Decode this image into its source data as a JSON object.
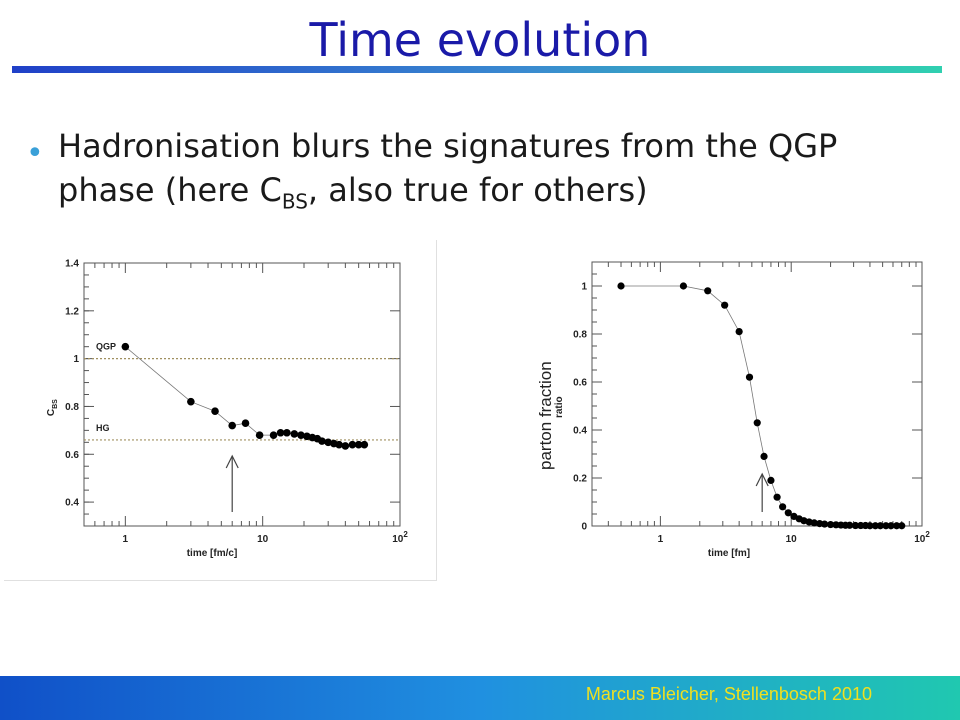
{
  "slide": {
    "title": "Time evolution",
    "bullet": {
      "text_before": "Hadronisation blurs the signatures from the QGP phase (here C",
      "subscript": "BS",
      "text_after": ", also true for others)"
    },
    "overlay_label": "parton fraction",
    "footer": "Marcus Bleicher, Stellenbosch 2010"
  },
  "colors": {
    "title": "#1a1aa8",
    "bullet_dot": "#3aa0d8",
    "footer_text": "#f0e020",
    "marker": "#000000"
  },
  "chart_data": [
    {
      "type": "line",
      "xscale": "log",
      "xlabel": "time [fm/c]",
      "ylabel": "C_BS",
      "ylabel_main": "C",
      "ylabel_sub": "BS",
      "xlim": [
        0.5,
        100
      ],
      "ylim": [
        0.3,
        1.4
      ],
      "xticks": [
        {
          "value": 1,
          "label": "1"
        },
        {
          "value": 10,
          "label": "10"
        },
        {
          "value": 100,
          "label": "10",
          "sup": "2"
        }
      ],
      "yticks": [
        {
          "value": 0.4,
          "label": "0.4"
        },
        {
          "value": 0.6,
          "label": "0.6"
        },
        {
          "value": 0.8,
          "label": "0.8"
        },
        {
          "value": 1.0,
          "label": "1"
        },
        {
          "value": 1.2,
          "label": "1.2"
        },
        {
          "value": 1.4,
          "label": "1.4"
        }
      ],
      "reference_lines": [
        {
          "label": "QGP",
          "y": 1.0
        },
        {
          "label": "HG",
          "y": 0.66
        }
      ],
      "arrow_at_x": 6,
      "x": [
        1,
        3,
        4.5,
        6,
        7.5,
        9.5,
        12,
        13.5,
        15,
        17,
        19,
        21,
        23,
        25,
        27,
        30,
        33,
        36,
        40,
        45,
        50,
        55
      ],
      "y": [
        1.05,
        0.82,
        0.78,
        0.72,
        0.73,
        0.68,
        0.68,
        0.69,
        0.69,
        0.685,
        0.68,
        0.675,
        0.67,
        0.665,
        0.655,
        0.65,
        0.645,
        0.64,
        0.635,
        0.64,
        0.64,
        0.64
      ]
    },
    {
      "type": "line",
      "xscale": "log",
      "xlabel": "time [fm]",
      "ylabel": "ratio",
      "xlim": [
        0.3,
        100
      ],
      "ylim": [
        0,
        1.1
      ],
      "xticks": [
        {
          "value": 1,
          "label": "1"
        },
        {
          "value": 10,
          "label": "10"
        },
        {
          "value": 100,
          "label": "10",
          "sup": "2"
        }
      ],
      "yticks": [
        {
          "value": 0,
          "label": "0"
        },
        {
          "value": 0.2,
          "label": "0.2"
        },
        {
          "value": 0.4,
          "label": "0.4"
        },
        {
          "value": 0.6,
          "label": "0.6"
        },
        {
          "value": 0.8,
          "label": "0.8"
        },
        {
          "value": 1.0,
          "label": "1"
        }
      ],
      "arrow_at_x": 6,
      "x": [
        0.5,
        1.5,
        2.3,
        3.1,
        4,
        4.8,
        5.5,
        6.2,
        7,
        7.8,
        8.6,
        9.5,
        10.5,
        11.5,
        12.5,
        13.7,
        15,
        16.5,
        18,
        20,
        22,
        24,
        26,
        28,
        31,
        34,
        37,
        40,
        44,
        48,
        53,
        58,
        64,
        70
      ],
      "y": [
        1.0,
        1.0,
        0.98,
        0.92,
        0.81,
        0.62,
        0.43,
        0.29,
        0.19,
        0.12,
        0.08,
        0.055,
        0.04,
        0.03,
        0.022,
        0.017,
        0.013,
        0.01,
        0.008,
        0.006,
        0.005,
        0.004,
        0.003,
        0.003,
        0.002,
        0.002,
        0.002,
        0.001,
        0.001,
        0.001,
        0.001,
        0.001,
        0.001,
        0.001
      ]
    }
  ]
}
